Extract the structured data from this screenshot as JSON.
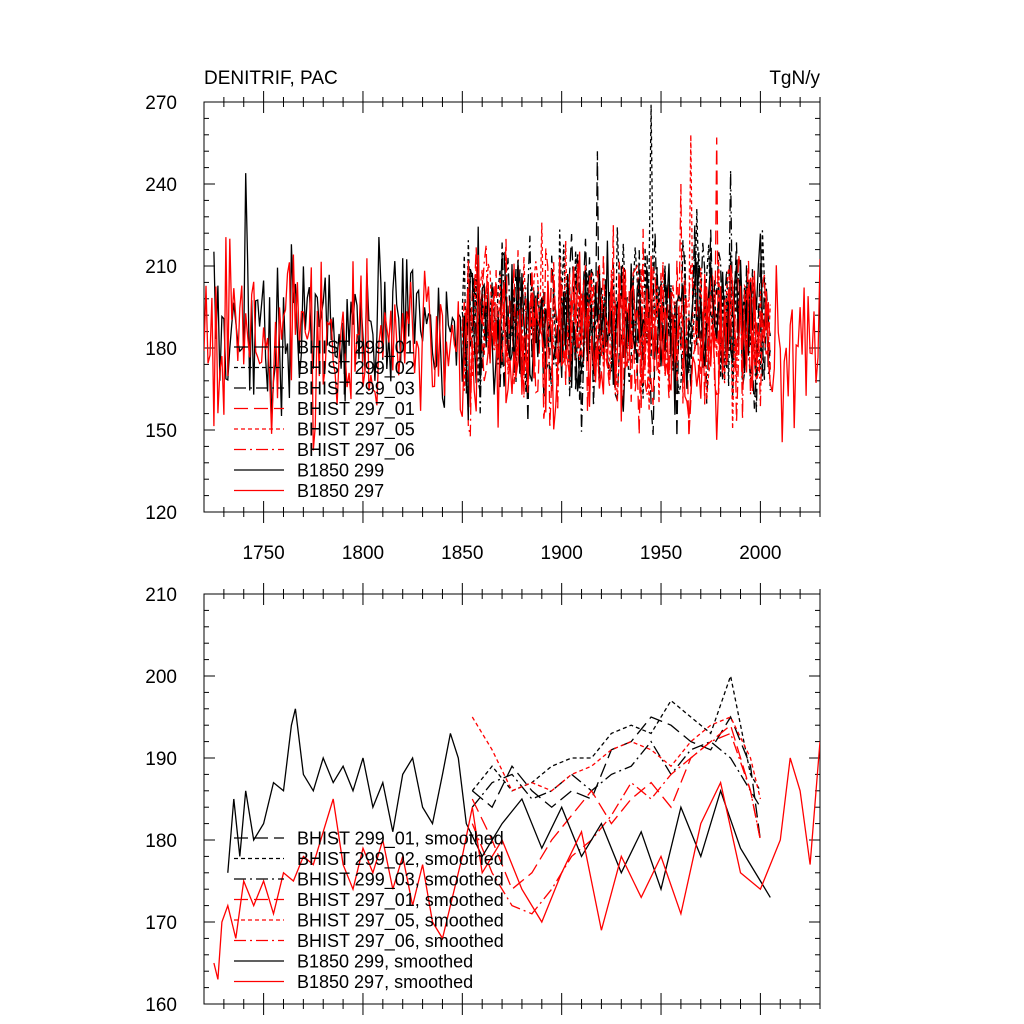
{
  "chart_data": [
    {
      "type": "line",
      "title": "DENITRIF, PAC",
      "units": "TgN/y",
      "xlabel": "",
      "ylabel": "",
      "xlim": [
        1720,
        2030
      ],
      "ylim": [
        120,
        270
      ],
      "xticks": [
        1750,
        1800,
        1850,
        1900,
        1950,
        2000
      ],
      "yticks": [
        120,
        150,
        180,
        210,
        240,
        270
      ],
      "xtick_labels": [
        "1750",
        "1800",
        "1850",
        "1900",
        "1950",
        "2000"
      ],
      "ytick_labels": [
        "120",
        "150",
        "180",
        "210",
        "240",
        "270"
      ],
      "legend_position": "bottom-left",
      "series": [
        {
          "name": "BHIST 299_01",
          "color": "#000000",
          "dash": "long-dash",
          "x_range": [
            1850,
            2005
          ],
          "mean": 188,
          "amp": 24,
          "peak": [
            1918,
            252
          ]
        },
        {
          "name": "BHIST 299_02",
          "color": "#000000",
          "dash": "short-dash",
          "x_range": [
            1850,
            2005
          ],
          "mean": 190,
          "amp": 25,
          "peak": [
            1945,
            269
          ]
        },
        {
          "name": "BHIST 299_03",
          "color": "#000000",
          "dash": "dash-dot",
          "x_range": [
            1850,
            2005
          ],
          "mean": 188,
          "amp": 24,
          "peak": [
            1985,
            245
          ]
        },
        {
          "name": "BHIST 297_01",
          "color": "#ff0000",
          "dash": "long-dash",
          "x_range": [
            1850,
            2005
          ],
          "mean": 185,
          "amp": 24,
          "peak": [
            1978,
            257
          ]
        },
        {
          "name": "BHIST 297_05",
          "color": "#ff0000",
          "dash": "short-dash",
          "x_range": [
            1850,
            2005
          ],
          "mean": 188,
          "amp": 24,
          "peak": [
            1965,
            258
          ]
        },
        {
          "name": "BHIST 297_06",
          "color": "#ff0000",
          "dash": "dash-dot",
          "x_range": [
            1850,
            2005
          ],
          "mean": 186,
          "amp": 24,
          "peak": [
            1960,
            240
          ]
        },
        {
          "name": "B1850 299",
          "color": "#000000",
          "dash": "solid",
          "x_range": [
            1725,
            2005
          ],
          "mean": 188,
          "amp": 24,
          "peak": [
            1741,
            244
          ]
        },
        {
          "name": "B1850 297",
          "color": "#ff0000",
          "dash": "solid",
          "x_range": [
            1720,
            2030
          ],
          "mean": 183,
          "amp": 24,
          "peak": [
            1733,
            220
          ]
        }
      ]
    },
    {
      "type": "line",
      "title": "",
      "xlabel": "",
      "ylabel": "",
      "xlim": [
        1720,
        2030
      ],
      "ylim": [
        160,
        210
      ],
      "xticks": [
        1750,
        1800,
        1850,
        1900,
        1950,
        2000
      ],
      "yticks": [
        160,
        170,
        180,
        190,
        200,
        210
      ],
      "ytick_labels": [
        "160",
        "170",
        "180",
        "190",
        "200",
        "210"
      ],
      "legend_position": "bottom-left",
      "series": [
        {
          "name": "BHIST 299_01, smoothed",
          "color": "#000000",
          "dash": "long-dash",
          "points": [
            [
              1855,
              186
            ],
            [
              1865,
              184
            ],
            [
              1875,
              189
            ],
            [
              1885,
              186
            ],
            [
              1895,
              184
            ],
            [
              1905,
              186
            ],
            [
              1915,
              185
            ],
            [
              1925,
              191
            ],
            [
              1935,
              192
            ],
            [
              1945,
              195
            ],
            [
              1955,
              194
            ],
            [
              1965,
              192
            ],
            [
              1975,
              191
            ],
            [
              1985,
              195
            ],
            [
              1995,
              189
            ],
            [
              2000,
              180
            ]
          ]
        },
        {
          "name": "BHIST 299_02, smoothed",
          "color": "#000000",
          "dash": "short-dash",
          "points": [
            [
              1855,
              186
            ],
            [
              1865,
              189
            ],
            [
              1875,
              186
            ],
            [
              1885,
              187
            ],
            [
              1895,
              189
            ],
            [
              1905,
              190
            ],
            [
              1915,
              190
            ],
            [
              1925,
              193
            ],
            [
              1935,
              194
            ],
            [
              1945,
              193
            ],
            [
              1955,
              197
            ],
            [
              1965,
              195
            ],
            [
              1975,
              193
            ],
            [
              1985,
              200
            ],
            [
              1995,
              188
            ],
            [
              2000,
              186
            ]
          ]
        },
        {
          "name": "BHIST 299_03, smoothed",
          "color": "#000000",
          "dash": "dash-dot",
          "points": [
            [
              1855,
              184
            ],
            [
              1865,
              187
            ],
            [
              1875,
              188
            ],
            [
              1885,
              185
            ],
            [
              1895,
              186
            ],
            [
              1905,
              188
            ],
            [
              1915,
              186
            ],
            [
              1925,
              188
            ],
            [
              1935,
              189
            ],
            [
              1945,
              192
            ],
            [
              1955,
              188
            ],
            [
              1965,
              191
            ],
            [
              1975,
              192
            ],
            [
              1985,
              190
            ],
            [
              1995,
              186
            ],
            [
              2000,
              184
            ]
          ]
        },
        {
          "name": "BHIST 297_01, smoothed",
          "color": "#ff0000",
          "dash": "long-dash",
          "points": [
            [
              1855,
              185
            ],
            [
              1865,
              180
            ],
            [
              1875,
              174
            ],
            [
              1885,
              176
            ],
            [
              1895,
              180
            ],
            [
              1905,
              183
            ],
            [
              1915,
              186
            ],
            [
              1925,
              182
            ],
            [
              1935,
              185
            ],
            [
              1945,
              187
            ],
            [
              1955,
              184
            ],
            [
              1965,
              190
            ],
            [
              1975,
              192
            ],
            [
              1985,
              194
            ],
            [
              1995,
              186
            ],
            [
              2000,
              180
            ]
          ]
        },
        {
          "name": "BHIST 297_05, smoothed",
          "color": "#ff0000",
          "dash": "short-dash",
          "points": [
            [
              1855,
              195
            ],
            [
              1865,
              191
            ],
            [
              1875,
              186
            ],
            [
              1885,
              187
            ],
            [
              1895,
              186
            ],
            [
              1905,
              188
            ],
            [
              1915,
              189
            ],
            [
              1925,
              191
            ],
            [
              1935,
              192
            ],
            [
              1945,
              191
            ],
            [
              1955,
              189
            ],
            [
              1965,
              192
            ],
            [
              1975,
              194
            ],
            [
              1985,
              195
            ],
            [
              1995,
              190
            ],
            [
              2000,
              185
            ]
          ]
        },
        {
          "name": "BHIST 297_06, smoothed",
          "color": "#ff0000",
          "dash": "dash-dot",
          "points": [
            [
              1855,
              182
            ],
            [
              1865,
              176
            ],
            [
              1875,
              172
            ],
            [
              1885,
              171
            ],
            [
              1895,
              174
            ],
            [
              1905,
              178
            ],
            [
              1915,
              180
            ],
            [
              1925,
              183
            ],
            [
              1935,
              187
            ],
            [
              1945,
              185
            ],
            [
              1955,
              188
            ],
            [
              1965,
              190
            ],
            [
              1975,
              192
            ],
            [
              1985,
              193
            ],
            [
              1995,
              186
            ],
            [
              2000,
              180
            ]
          ]
        },
        {
          "name": "B1850 299, smoothed",
          "color": "#000000",
          "dash": "solid",
          "points": [
            [
              1732,
              176
            ],
            [
              1735,
              185
            ],
            [
              1738,
              178
            ],
            [
              1741,
              186
            ],
            [
              1745,
              180
            ],
            [
              1750,
              182
            ],
            [
              1755,
              187
            ],
            [
              1760,
              186
            ],
            [
              1764,
              194
            ],
            [
              1766,
              196
            ],
            [
              1770,
              188
            ],
            [
              1775,
              186
            ],
            [
              1780,
              190
            ],
            [
              1785,
              187
            ],
            [
              1790,
              189
            ],
            [
              1795,
              186
            ],
            [
              1800,
              190
            ],
            [
              1805,
              184
            ],
            [
              1810,
              187
            ],
            [
              1815,
              181
            ],
            [
              1820,
              188
            ],
            [
              1825,
              190
            ],
            [
              1830,
              184
            ],
            [
              1835,
              182
            ],
            [
              1840,
              188
            ],
            [
              1844,
              193
            ],
            [
              1848,
              190
            ],
            [
              1852,
              182
            ],
            [
              1860,
              178
            ],
            [
              1870,
              182
            ],
            [
              1880,
              185
            ],
            [
              1890,
              179
            ],
            [
              1900,
              184
            ],
            [
              1910,
              178
            ],
            [
              1920,
              182
            ],
            [
              1930,
              176
            ],
            [
              1940,
              181
            ],
            [
              1950,
              174
            ],
            [
              1960,
              184
            ],
            [
              1970,
              178
            ],
            [
              1980,
              186
            ],
            [
              1990,
              179
            ],
            [
              2000,
              175
            ],
            [
              2005,
              173
            ]
          ]
        },
        {
          "name": "B1850 297, smoothed",
          "color": "#ff0000",
          "dash": "solid",
          "points": [
            [
              1725,
              165
            ],
            [
              1727,
              163
            ],
            [
              1729,
              170
            ],
            [
              1732,
              172
            ],
            [
              1736,
              168
            ],
            [
              1740,
              175
            ],
            [
              1745,
              172
            ],
            [
              1750,
              175
            ],
            [
              1755,
              171
            ],
            [
              1760,
              176
            ],
            [
              1765,
              175
            ],
            [
              1770,
              178
            ],
            [
              1775,
              177
            ],
            [
              1780,
              181
            ],
            [
              1785,
              185
            ],
            [
              1790,
              177
            ],
            [
              1795,
              174
            ],
            [
              1800,
              179
            ],
            [
              1805,
              176
            ],
            [
              1810,
              180
            ],
            [
              1815,
              174
            ],
            [
              1820,
              178
            ],
            [
              1825,
              172
            ],
            [
              1830,
              177
            ],
            [
              1835,
              170
            ],
            [
              1840,
              168
            ],
            [
              1845,
              173
            ],
            [
              1850,
              178
            ],
            [
              1855,
              184
            ],
            [
              1860,
              176
            ],
            [
              1870,
              180
            ],
            [
              1880,
              174
            ],
            [
              1890,
              170
            ],
            [
              1900,
              176
            ],
            [
              1910,
              181
            ],
            [
              1920,
              169
            ],
            [
              1930,
              178
            ],
            [
              1940,
              173
            ],
            [
              1950,
              178
            ],
            [
              1960,
              171
            ],
            [
              1970,
              182
            ],
            [
              1980,
              187
            ],
            [
              1990,
              176
            ],
            [
              2000,
              174
            ],
            [
              2010,
              180
            ],
            [
              2015,
              190
            ],
            [
              2020,
              186
            ],
            [
              2025,
              177
            ],
            [
              2030,
              192
            ]
          ]
        }
      ]
    }
  ]
}
